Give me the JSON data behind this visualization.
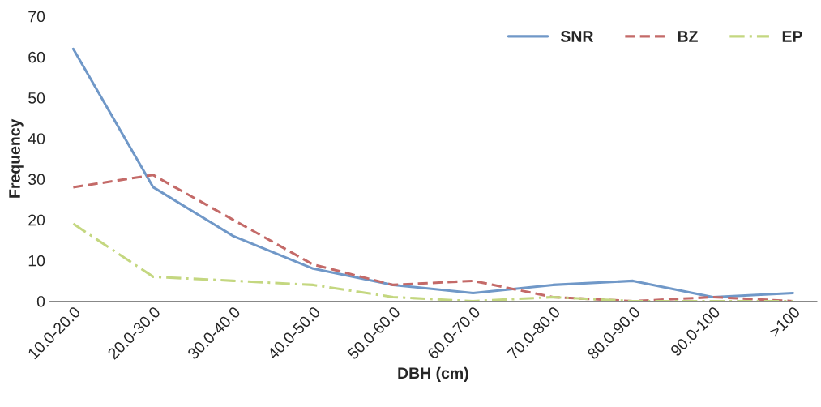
{
  "chart_data": {
    "type": "line",
    "xlabel": "DBH (cm)",
    "ylabel": "Frequency",
    "categories": [
      "10.0-20.0",
      "20.0-30.0",
      "30.0-40.0",
      "40.0-50.0",
      "50.0-60.0",
      "60.0-70.0",
      "70.0-80.0",
      "80.0-90.0",
      "90.0-100",
      ">100"
    ],
    "series": [
      {
        "name": "SNR",
        "color": "#7098c8",
        "line_style": "solid",
        "values": [
          62,
          28,
          16,
          8,
          4,
          2,
          4,
          5,
          1,
          2
        ]
      },
      {
        "name": "BZ",
        "color": "#c46a68",
        "line_style": "dashed",
        "values": [
          28,
          31,
          20,
          9,
          4,
          5,
          1,
          0,
          1,
          0
        ]
      },
      {
        "name": "EP",
        "color": "#c4d780",
        "line_style": "dashdot",
        "values": [
          19,
          6,
          5,
          4,
          1,
          0,
          1,
          0,
          0,
          0
        ]
      }
    ],
    "ylim": [
      0,
      70
    ],
    "yticks": [
      0,
      10,
      20,
      30,
      40,
      50,
      60,
      70
    ],
    "grid": false,
    "legend": "top right"
  }
}
